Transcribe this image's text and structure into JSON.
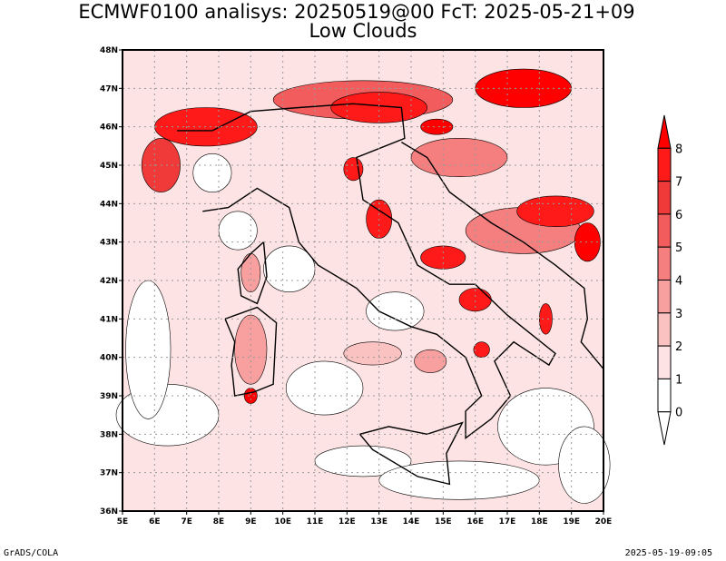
{
  "title_line1": "ECMWF0100 analisys: 20250519@00 FcT: 2025-05-21+09",
  "title_line2": "Low Clouds",
  "footer_left": "GrADS/COLA",
  "footer_right": "2025-05-19-09:05",
  "map": {
    "lon_range": [
      5,
      20
    ],
    "lat_range": [
      36,
      48
    ],
    "lon_ticks": [
      "5E",
      "6E",
      "7E",
      "8E",
      "9E",
      "10E",
      "11E",
      "12E",
      "13E",
      "14E",
      "15E",
      "16E",
      "17E",
      "18E",
      "19E",
      "20E"
    ],
    "lat_ticks": [
      "36N",
      "37N",
      "38N",
      "39N",
      "40N",
      "41N",
      "42N",
      "43N",
      "44N",
      "45N",
      "46N",
      "47N",
      "48N"
    ],
    "grid": "dotted"
  },
  "colorbar": {
    "levels": [
      "0",
      "1",
      "2",
      "3",
      "4",
      "5",
      "6",
      "7",
      "8"
    ],
    "colors": [
      "#ffffff",
      "#fde3e3",
      "#fbc2c2",
      "#f8a0a0",
      "#f57e7e",
      "#f25c5c",
      "#f03a3a",
      "#ff1a1a",
      "#ff0000"
    ]
  }
}
